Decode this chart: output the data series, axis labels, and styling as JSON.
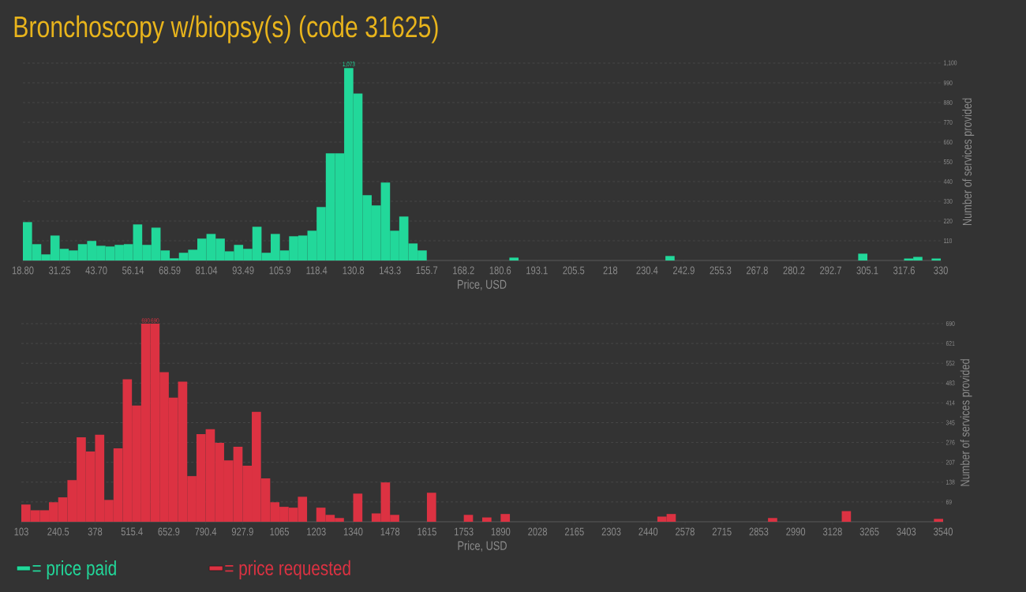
{
  "chart_data": [
    {
      "type": "histogram",
      "title": "Bronchoscopy w/biopsy(s) (code 31625)",
      "xlabel": "Price, USD",
      "ylabel": "Number of services provided",
      "bins": [
        18.8,
        21.912,
        25.024,
        28.136,
        31.248,
        34.36,
        37.472,
        40.584,
        43.696,
        46.808,
        49.92,
        53.032,
        56.144,
        59.256,
        62.368,
        65.48,
        68.592,
        71.704,
        74.816,
        77.928,
        81.04,
        84.152,
        87.264,
        90.376,
        93.488,
        96.6,
        99.712,
        102.824,
        105.936,
        109.048,
        112.16,
        115.272,
        118.384,
        121.496,
        124.608,
        127.72,
        130.832,
        133.944,
        137.056,
        140.168,
        143.28,
        146.392,
        149.504,
        152.616,
        155.728,
        158.84,
        161.952,
        165.064,
        168.176,
        171.288,
        174.4,
        177.512,
        180.624,
        183.736,
        186.848,
        189.96,
        193.072,
        196.184,
        199.296,
        202.408,
        205.52,
        208.632,
        211.744,
        214.856,
        217.968,
        221.08,
        224.192,
        227.304,
        230.416,
        233.528,
        236.64,
        239.752,
        242.864,
        245.976,
        249.088,
        252.2,
        255.312,
        258.424,
        261.536,
        264.648,
        267.76,
        270.872,
        273.984,
        277.096,
        280.208,
        283.32,
        286.432,
        289.544,
        292.656,
        295.768,
        298.88,
        301.992,
        305.104,
        308.216,
        311.328,
        314.44,
        317.552,
        320.664,
        323.776,
        326.888,
        330
      ],
      "series": [
        {
          "name": "= price paid",
          "color": "#22d89a",
          "values": [
            214,
            91,
            34,
            139,
            65,
            56,
            91,
            109,
            82,
            78,
            87,
            91,
            201,
            87,
            183,
            56,
            12,
            43,
            60,
            122,
            148,
            122,
            51,
            87,
            65,
            188,
            43,
            148,
            56,
            135,
            139,
            166,
            298,
            597,
            597,
            1073,
            931,
            364,
            307,
            434,
            166,
            245,
            95,
            56,
            0,
            0,
            0,
            0,
            0,
            0,
            0,
            0,
            0,
            16,
            0,
            0,
            0,
            0,
            0,
            0,
            0,
            0,
            0,
            0,
            0,
            0,
            0,
            0,
            0,
            0,
            25,
            0,
            0,
            0,
            0,
            0,
            0,
            0,
            0,
            0,
            0,
            0,
            0,
            0,
            0,
            0,
            0,
            0,
            0,
            0,
            0,
            38,
            0,
            0,
            0,
            0,
            11,
            20,
            0,
            11
          ]
        }
      ],
      "xlim": [
        18.8,
        330
      ],
      "ylim": [
        0,
        1100
      ],
      "xticks": [
        {
          "value": 18.8,
          "label": "18.80"
        },
        {
          "value": 31.248,
          "label": "31.25"
        },
        {
          "value": 43.696,
          "label": "43.70"
        },
        {
          "value": 56.144,
          "label": "56.14"
        },
        {
          "value": 68.592,
          "label": "68.59"
        },
        {
          "value": 81.04,
          "label": "81.04"
        },
        {
          "value": 93.488,
          "label": "93.49"
        },
        {
          "value": 105.936,
          "label": "105.9"
        },
        {
          "value": 118.384,
          "label": "118.4"
        },
        {
          "value": 130.832,
          "label": "130.8"
        },
        {
          "value": 143.28,
          "label": "143.3"
        },
        {
          "value": 155.728,
          "label": "155.7"
        },
        {
          "value": 168.176,
          "label": "168.2"
        },
        {
          "value": 180.624,
          "label": "180.6"
        },
        {
          "value": 193.072,
          "label": "193.1"
        },
        {
          "value": 205.52,
          "label": "205.5"
        },
        {
          "value": 217.968,
          "label": "218"
        },
        {
          "value": 230.416,
          "label": "230.4"
        },
        {
          "value": 242.864,
          "label": "242.9"
        },
        {
          "value": 255.312,
          "label": "255.3"
        },
        {
          "value": 267.76,
          "label": "267.8"
        },
        {
          "value": 280.208,
          "label": "280.2"
        },
        {
          "value": 292.656,
          "label": "292.7"
        },
        {
          "value": 305.104,
          "label": "305.1"
        },
        {
          "value": 317.552,
          "label": "317.6"
        },
        {
          "value": 330,
          "label": "330"
        }
      ],
      "yticks": [
        110,
        220,
        330,
        440,
        550,
        660,
        770,
        880,
        990,
        {
          "value": 1100,
          "label": "1,100"
        }
      ],
      "grid": "y",
      "legend": "bottom left",
      "annotations": [
        {
          "text": "1,073",
          "x": 129.276,
          "y": 1073
        }
      ]
    },
    {
      "type": "histogram",
      "xlabel": "Price, USD",
      "ylabel": "Number of services provided",
      "bins": [
        103,
        137.37,
        171.74,
        206.11,
        240.48,
        274.85,
        309.22,
        343.59,
        377.96,
        412.33,
        446.7,
        481.07,
        515.44,
        549.81,
        584.18,
        618.55,
        652.92,
        687.29,
        721.66,
        756.03,
        790.4,
        824.77,
        859.14,
        893.51,
        927.88,
        962.25,
        996.62,
        1030.99,
        1065.36,
        1099.73,
        1134.1,
        1168.47,
        1202.84,
        1237.21,
        1271.58,
        1305.95,
        1340.32,
        1374.69,
        1409.06,
        1443.43,
        1477.8,
        1512.17,
        1546.54,
        1580.91,
        1615.28,
        1649.65,
        1684.02,
        1718.39,
        1752.76,
        1787.13,
        1821.5,
        1855.87,
        1890.24,
        1924.61,
        1958.98,
        1993.35,
        2027.72,
        2062.09,
        2096.46,
        2130.83,
        2165.2,
        2199.57,
        2233.94,
        2268.31,
        2302.68,
        2337.05,
        2371.42,
        2405.79,
        2440.16,
        2474.53,
        2508.9,
        2543.27,
        2577.64,
        2612.01,
        2646.38,
        2680.75,
        2715.12,
        2749.49,
        2783.86,
        2818.23,
        2852.6,
        2886.97,
        2921.34,
        2955.71,
        2990.08,
        3024.45,
        3058.82,
        3093.19,
        3127.56,
        3161.93,
        3196.3,
        3230.67,
        3265.04,
        3299.41,
        3333.78,
        3368.15,
        3402.52,
        3436.89,
        3471.26,
        3505.63,
        3540
      ],
      "series": [
        {
          "name": "= price requested",
          "color": "#dc3242",
          "values": [
            60,
            40,
            40,
            68,
            85,
            145,
            294,
            245,
            303,
            76,
            256,
            496,
            405,
            690,
            690,
            521,
            432,
            488,
            159,
            305,
            322,
            275,
            214,
            261,
            195,
            383,
            151,
            68,
            52,
            49,
            87,
            0,
            49,
            24,
            13,
            0,
            98,
            0,
            29,
            137,
            24,
            0,
            0,
            0,
            101,
            0,
            0,
            0,
            24,
            0,
            15,
            0,
            27,
            0,
            0,
            0,
            0,
            0,
            0,
            0,
            0,
            0,
            0,
            0,
            0,
            0,
            0,
            0,
            0,
            18,
            27,
            0,
            0,
            0,
            0,
            0,
            0,
            0,
            0,
            0,
            0,
            13,
            0,
            0,
            0,
            0,
            0,
            0,
            0,
            37,
            0,
            0,
            0,
            0,
            0,
            0,
            0,
            0,
            0,
            10
          ]
        }
      ],
      "xlim": [
        103,
        3540
      ],
      "ylim": [
        0,
        690
      ],
      "xticks": [
        {
          "value": 103,
          "label": "103"
        },
        {
          "value": 240.48,
          "label": "240.5"
        },
        {
          "value": 377.96,
          "label": "378"
        },
        {
          "value": 515.44,
          "label": "515.4"
        },
        {
          "value": 652.92,
          "label": "652.9"
        },
        {
          "value": 790.4,
          "label": "790.4"
        },
        {
          "value": 927.88,
          "label": "927.9"
        },
        {
          "value": 1065.36,
          "label": "1065"
        },
        {
          "value": 1202.84,
          "label": "1203"
        },
        {
          "value": 1340.32,
          "label": "1340"
        },
        {
          "value": 1477.8,
          "label": "1478"
        },
        {
          "value": 1615.28,
          "label": "1615"
        },
        {
          "value": 1752.76,
          "label": "1753"
        },
        {
          "value": 1890.24,
          "label": "1890"
        },
        {
          "value": 2027.72,
          "label": "2028"
        },
        {
          "value": 2165.2,
          "label": "2165"
        },
        {
          "value": 2302.68,
          "label": "2303"
        },
        {
          "value": 2440.16,
          "label": "2440"
        },
        {
          "value": 2577.64,
          "label": "2578"
        },
        {
          "value": 2715.12,
          "label": "2715"
        },
        {
          "value": 2852.6,
          "label": "2853"
        },
        {
          "value": 2990.08,
          "label": "2990"
        },
        {
          "value": 3127.56,
          "label": "3128"
        },
        {
          "value": 3265.04,
          "label": "3265"
        },
        {
          "value": 3402.52,
          "label": "3403"
        },
        {
          "value": 3540,
          "label": "3540"
        }
      ],
      "yticks": [
        69,
        138,
        207,
        276,
        345,
        414,
        483,
        552,
        621,
        690
      ],
      "grid": "y",
      "legend": "bottom left",
      "annotations": [
        {
          "text": "690",
          "x": 566.995,
          "y": 690
        },
        {
          "text": "690",
          "x": 601.365,
          "y": 690
        }
      ]
    }
  ]
}
